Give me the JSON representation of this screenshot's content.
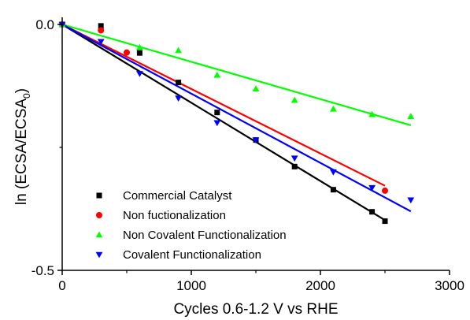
{
  "chart_data": {
    "type": "scatter",
    "xlabel": "Cycles 0.6-1.2 V vs RHE",
    "ylabel": "ln (ECSA/ECSA",
    "ylabel_subscript": "0",
    "ylabel_close": ")",
    "xlim": [
      0,
      3000
    ],
    "ylim": [
      -0.5,
      0.0
    ],
    "x_ticks": [
      0,
      1000,
      2000,
      3000
    ],
    "x_tick_labels": [
      "0",
      "1000",
      "2000",
      "3000"
    ],
    "y_ticks": [
      0.0,
      -0.5
    ],
    "y_tick_labels": [
      "0.0",
      "-0.5"
    ],
    "grid": false,
    "legend_position": "bottom-left",
    "series": [
      {
        "name": "Commercial Catalyst",
        "marker": "square",
        "color": "#000000",
        "x": [
          0,
          300,
          600,
          900,
          1200,
          1500,
          1800,
          2100,
          2400,
          2500
        ],
        "y": [
          0.0,
          -0.003,
          -0.058,
          -0.118,
          -0.179,
          -0.235,
          -0.289,
          -0.336,
          -0.381,
          -0.4
        ],
        "fit": {
          "x": [
            0,
            2500
          ],
          "y": [
            0.0,
            -0.398
          ]
        }
      },
      {
        "name": "Non fuctionalization",
        "marker": "circle",
        "color": "#ff0000",
        "x": [
          0,
          300,
          500,
          2500
        ],
        "y": [
          0.0,
          -0.012,
          -0.057,
          -0.338
        ],
        "fit": {
          "x": [
            0,
            2500
          ],
          "y": [
            0.0,
            -0.328
          ]
        }
      },
      {
        "name": "Non Covalent Functionalization",
        "marker": "triangle-up",
        "color": "#00ff00",
        "x": [
          0,
          600,
          900,
          1200,
          1500,
          1800,
          2100,
          2400,
          2700
        ],
        "y": [
          0.0,
          -0.047,
          -0.053,
          -0.103,
          -0.131,
          -0.154,
          -0.172,
          -0.183,
          -0.187
        ],
        "fit": {
          "x": [
            0,
            2700
          ],
          "y": [
            0.0,
            -0.205
          ]
        }
      },
      {
        "name": "Covalent Functionalization",
        "marker": "triangle-down",
        "color": "#0000ff",
        "x": [
          0,
          300,
          600,
          900,
          1200,
          1500,
          1800,
          2100,
          2400,
          2700
        ],
        "y": [
          0.0,
          -0.035,
          -0.1,
          -0.15,
          -0.2,
          -0.235,
          -0.272,
          -0.3,
          -0.332,
          -0.357
        ],
        "fit": {
          "x": [
            0,
            2700
          ],
          "y": [
            0.0,
            -0.38
          ]
        }
      }
    ]
  }
}
